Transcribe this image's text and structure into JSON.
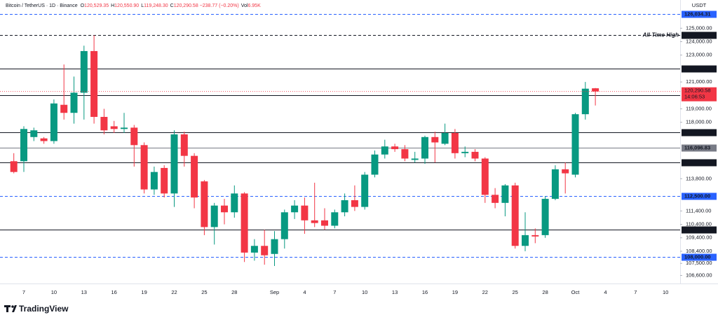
{
  "chart_data": {
    "type": "candlestick",
    "header": {
      "symbol": "Bitcoin / TetherUS · 1D · Binance",
      "items": [
        {
          "key": "O",
          "text": "120,529.35"
        },
        {
          "key": "H",
          "text": "120,550.90"
        },
        {
          "key": "L",
          "text": "119,248.30"
        },
        {
          "key": "C",
          "text": "120,290.58 −238.77 (−0.20%)"
        },
        {
          "key": "Vol",
          "text": "6.95K"
        }
      ]
    },
    "unit": "USDT",
    "brand": "TradingView",
    "up_color": "#089981",
    "down_color": "#f23645",
    "grid": false,
    "categories": [
      null,
      "7",
      null,
      null,
      "10",
      null,
      null,
      "13",
      null,
      null,
      "16",
      null,
      null,
      "19",
      null,
      null,
      "22",
      null,
      null,
      "25",
      null,
      null,
      "28",
      null,
      null,
      null,
      "Sep",
      null,
      null,
      "4",
      null,
      null,
      "7",
      null,
      null,
      "10",
      null,
      null,
      "13",
      null,
      null,
      "16",
      null,
      null,
      "19",
      null,
      null,
      "22",
      null,
      null,
      "25",
      null,
      null,
      "28",
      null,
      null,
      "Oct",
      null,
      null,
      "4",
      null,
      null,
      "7",
      null,
      null,
      "10"
    ],
    "open": [
      115100,
      115100,
      116900,
      116800,
      116600,
      119300,
      118700,
      120200,
      123300,
      118400,
      117700,
      117500,
      117600,
      116300,
      113000,
      114600,
      112700,
      117100,
      115500,
      113600,
      110200,
      111800,
      111300,
      112700,
      108300,
      108800,
      108200,
      109300,
      111300,
      111800,
      110700,
      110700,
      110300,
      111300,
      112200,
      111700,
      114100,
      115600,
      116200,
      116000,
      115200,
      115300,
      116900,
      116400,
      117200,
      115700,
      115800,
      115300,
      112600,
      112000,
      113300,
      108800,
      109600,
      109600,
      112300,
      114500,
      114100,
      118600,
      120529.35,
      null,
      null,
      null,
      null,
      null,
      null,
      null
    ],
    "high": [
      115700,
      117700,
      117600,
      116900,
      119700,
      122300,
      121400,
      123700,
      124470,
      119000,
      118100,
      118700,
      117800,
      116500,
      114700,
      114800,
      117400,
      117300,
      115700,
      113700,
      112000,
      112300,
      113300,
      112800,
      109300,
      110000,
      109900,
      111500,
      112200,
      112400,
      113500,
      111600,
      111500,
      112700,
      113300,
      114300,
      115900,
      116700,
      116400,
      116300,
      115800,
      117000,
      117300,
      117900,
      117500,
      116200,
      116000,
      115400,
      113100,
      113400,
      113500,
      111300,
      110100,
      112500,
      114800,
      115000,
      118700,
      121000,
      120550.9,
      null,
      null,
      null,
      null,
      null,
      null,
      null
    ],
    "low": [
      114200,
      114300,
      116600,
      116400,
      116400,
      118200,
      117900,
      118200,
      117900,
      117100,
      117200,
      117200,
      114700,
      112700,
      112600,
      112400,
      111700,
      114700,
      111600,
      109600,
      108900,
      110400,
      110900,
      107600,
      107700,
      107400,
      107300,
      108600,
      110800,
      109700,
      110200,
      110000,
      110100,
      111000,
      111400,
      111500,
      113900,
      115300,
      115800,
      115100,
      115000,
      114900,
      115000,
      116300,
      115300,
      115400,
      115100,
      112000,
      111600,
      111000,
      108600,
      108400,
      109000,
      109400,
      112200,
      112700,
      113900,
      118200,
      119248.3,
      null,
      null,
      null,
      null,
      null,
      null,
      null
    ],
    "close": [
      114300,
      117500,
      117400,
      116600,
      119400,
      118700,
      120200,
      123300,
      118400,
      117400,
      117500,
      117600,
      116300,
      113000,
      114300,
      112700,
      117100,
      115500,
      112400,
      110200,
      111800,
      111300,
      112700,
      108300,
      108800,
      108100,
      109300,
      111300,
      111800,
      110700,
      110500,
      110300,
      111300,
      112200,
      111700,
      114100,
      115600,
      116200,
      116000,
      115300,
      115300,
      116900,
      116500,
      117200,
      115700,
      115800,
      115300,
      112600,
      112000,
      113300,
      108800,
      109600,
      109500,
      112300,
      114500,
      114200,
      118600,
      120500,
      120290.58,
      null,
      null,
      null,
      null,
      null,
      null,
      null
    ],
    "ylim": [
      106000,
      127100
    ],
    "yticks": [
      {
        "value": 125000,
        "label": "125,000.00"
      },
      {
        "value": 124000,
        "label": "124,000.00"
      },
      {
        "value": 123000,
        "label": "123,000.00"
      },
      {
        "value": 121000,
        "label": "121,000.00"
      },
      {
        "value": 119000,
        "label": "119,000.00"
      },
      {
        "value": 118000,
        "label": "118,000.00"
      },
      {
        "value": 113800,
        "label": "113,800.00"
      },
      {
        "value": 111400,
        "label": "111,400.00"
      },
      {
        "value": 110400,
        "label": "110,400.00"
      },
      {
        "value": 109400,
        "label": "109,400.00"
      },
      {
        "value": 108400,
        "label": "108,400.00"
      },
      {
        "value": 107500,
        "label": "107,500.00"
      },
      {
        "value": 106600,
        "label": "106,600.00"
      }
    ],
    "levels": [
      {
        "value": 126034.31,
        "label": "126,034.31",
        "color": "#2962ff",
        "style": "dashed"
      },
      {
        "value": 124474,
        "label": "124,474.00",
        "color": "#131722",
        "style": "dashed",
        "annotation": "All-Time High"
      },
      {
        "value": 122000,
        "label": "122,000.00",
        "color": "#131722",
        "style": "solid"
      },
      {
        "value": 120000,
        "label": "120,000.00",
        "color": "#131722",
        "style": "solid"
      },
      {
        "value": 117261.3,
        "label": "117,261.30",
        "color": "#131722",
        "style": "solid"
      },
      {
        "value": 116096.83,
        "label": "116,096.83",
        "color": "#787b86",
        "style": "solid"
      },
      {
        "value": 115000,
        "label": "115,000.00",
        "color": "#131722",
        "style": "solid"
      },
      {
        "value": 112500,
        "label": "112,500.00",
        "color": "#2962ff",
        "style": "dashed"
      },
      {
        "value": 110000,
        "label": "110,000.00",
        "color": "#131722",
        "style": "solid"
      },
      {
        "value": 108000,
        "label": "108,000.00",
        "color": "#2962ff",
        "style": "dashed"
      }
    ],
    "last_price": {
      "value": 120290.58,
      "label": "120,290.58",
      "countdown": "14:06:53"
    }
  }
}
